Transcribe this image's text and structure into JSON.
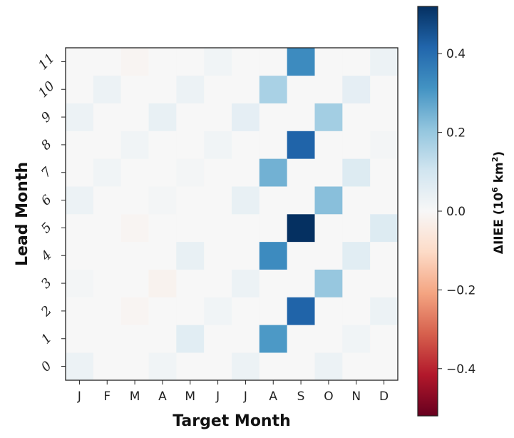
{
  "chart_data": {
    "type": "heatmap",
    "xlabel": "Target Month",
    "ylabel": "Lead Month",
    "x_categories": [
      "J",
      "F",
      "M",
      "A",
      "M",
      "J",
      "J",
      "A",
      "S",
      "O",
      "N",
      "D"
    ],
    "y_categories": [
      "0",
      "1",
      "2",
      "3",
      "4",
      "5",
      "6",
      "7",
      "8",
      "9",
      "10",
      "11"
    ],
    "values": [
      [
        0.03,
        0.0,
        0.0,
        0.02,
        0.0,
        0.0,
        0.03,
        0.0,
        0.0,
        0.03,
        0.0,
        0.0
      ],
      [
        0.0,
        0.0,
        0.0,
        0.0,
        0.06,
        0.0,
        0.0,
        0.3,
        0.0,
        0.0,
        0.02,
        0.0
      ],
      [
        0.0,
        0.0,
        -0.01,
        0.0,
        0.0,
        0.02,
        0.0,
        0.0,
        0.42,
        0.0,
        0.0,
        0.03
      ],
      [
        0.01,
        0.0,
        0.0,
        -0.02,
        0.0,
        0.0,
        0.03,
        0.0,
        0.0,
        0.2,
        0.0,
        0.0
      ],
      [
        0.0,
        0.0,
        0.0,
        0.0,
        0.04,
        0.0,
        0.0,
        0.33,
        0.0,
        0.0,
        0.06,
        0.0
      ],
      [
        0.0,
        0.0,
        -0.01,
        0.0,
        0.0,
        0.0,
        0.0,
        0.0,
        0.52,
        0.0,
        0.0,
        0.07
      ],
      [
        0.03,
        0.0,
        0.0,
        0.01,
        0.0,
        0.0,
        0.04,
        0.0,
        0.0,
        0.22,
        0.0,
        0.0
      ],
      [
        0.0,
        0.02,
        0.0,
        0.0,
        0.01,
        0.0,
        0.0,
        0.25,
        0.0,
        0.0,
        0.07,
        0.0
      ],
      [
        0.0,
        0.0,
        0.02,
        0.0,
        0.0,
        0.02,
        0.0,
        0.0,
        0.42,
        0.0,
        0.0,
        0.01
      ],
      [
        0.03,
        0.0,
        0.0,
        0.04,
        0.0,
        0.0,
        0.05,
        0.0,
        0.0,
        0.18,
        0.0,
        0.0
      ],
      [
        0.0,
        0.03,
        0.0,
        0.0,
        0.03,
        0.0,
        0.0,
        0.17,
        0.0,
        0.0,
        0.05,
        0.0
      ],
      [
        0.0,
        0.0,
        -0.01,
        0.0,
        0.0,
        0.02,
        0.0,
        0.0,
        0.33,
        0.0,
        0.0,
        0.03
      ]
    ],
    "colorbar": {
      "label_main": "ΔIIEE (10",
      "label_sup": "6",
      "label_mid": " km",
      "label_sup2": "2",
      "label_end": ")",
      "range": [
        -0.52,
        0.52
      ],
      "ticks": [
        0.4,
        0.2,
        0.0,
        -0.2,
        -0.4
      ],
      "tick_labels": [
        "0.4",
        "0.2",
        "0.0",
        "−0.2",
        "−0.4"
      ],
      "colormap": "RdBu",
      "stops": [
        "#67001f",
        "#b2182b",
        "#d6604d",
        "#f4a582",
        "#fddbc7",
        "#f7f7f7",
        "#d1e5f0",
        "#92c5de",
        "#4393c3",
        "#2166ac",
        "#053061"
      ]
    },
    "grid": false
  }
}
